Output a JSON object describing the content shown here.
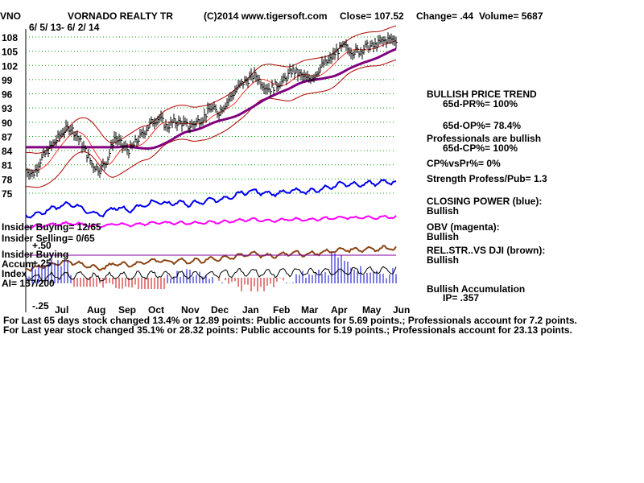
{
  "header": {
    "ticker": "VNO",
    "company": "VORNADO REALTY TR",
    "copyright": "(C)2014 www.tigersoft.com",
    "close": "Close=  107.52",
    "change": "Change= .44",
    "volume": "Volume= 5687",
    "date_range": "6/ 5/ 13- 6/ 2/ 14"
  },
  "right_panel": {
    "trend_title": "BULLISH PRICE TREND",
    "pr": "65d-PR%= 100%",
    "op": "65d-OP%= 78.4%",
    "pros": "Professionals are bullish",
    "cp": "65d-CP%= 100%",
    "cpvspr": "CP%vsPr%=  0%",
    "strength": "Strength Profess/Pub= 1.3",
    "closing_power": "CLOSING POWER (blue):",
    "closing_power_v": "Bullish",
    "obv": "OBV (magenta):",
    "obv_v": "Bullish",
    "relstr": "REL.STR..VS DJI (brown):",
    "relstr_v": "Bullish",
    "accum": "Bullish Accumulation",
    "ip": "IP=  .357"
  },
  "left_panel": {
    "insider_buying": "Insider Buying= 12/65",
    "insider_selling": "Insider Selling= 0/65",
    "insider_buying2": "Insider Buying",
    "accum": "Accum",
    "index": "Index",
    "ai": "AI= 157/200",
    "lvl_p50": "+.50",
    "lvl_p25": "+.25",
    "lvl_m25": "-.25"
  },
  "footer": {
    "line1": "For Last 65 days stock changed  13.4% or  12.89 points:  Public accounts for  5.69 points.;  Professionals account for  7.2 points.",
    "line2": "For Last year stock changed  35.1% or  28.32 points:  Public accounts for  5.19 points.;  Professionals account for  23.13 points."
  },
  "chart_data": {
    "type": "line",
    "x_months": [
      "Jul",
      "Aug",
      "Sep",
      "Oct",
      "Nov",
      "Dec",
      "Jan",
      "Feb",
      "Mar",
      "Apr",
      "May",
      "Jun"
    ],
    "y_ticks": [
      75,
      78,
      81,
      84,
      87,
      90,
      93,
      96,
      99,
      102,
      105,
      108
    ],
    "ylim": [
      74.5,
      109
    ],
    "grid": true,
    "colors": {
      "price": "#000000",
      "band": "#b00000",
      "ma": "#800080",
      "ma_short": "#ff3030",
      "closing_power": "#0000ee",
      "obv": "#ff00ff",
      "relstr": "#8b4513",
      "accum_pos": "#0000cc",
      "accum_neg": "#cc0000",
      "grid": "#00a000",
      "hline": "#8000a0"
    },
    "price_anchor": {
      "t": [
        0,
        0.02,
        0.04,
        0.06,
        0.08,
        0.1,
        0.12,
        0.14,
        0.16,
        0.18,
        0.2,
        0.22,
        0.24,
        0.26,
        0.28,
        0.3,
        0.32,
        0.34,
        0.36,
        0.38,
        0.4,
        0.42,
        0.44,
        0.46,
        0.48,
        0.5,
        0.52,
        0.54,
        0.56,
        0.58,
        0.6,
        0.62,
        0.64,
        0.66,
        0.68,
        0.7,
        0.72,
        0.74,
        0.76,
        0.78,
        0.8,
        0.82,
        0.84,
        0.86,
        0.88,
        0.9,
        0.92,
        0.94,
        0.96,
        0.98,
        1.0
      ],
      "v": [
        80,
        79,
        82,
        84,
        86,
        88,
        89,
        87,
        84,
        81,
        80,
        82,
        87,
        85,
        84,
        86,
        88,
        90,
        91,
        89,
        90,
        90,
        89,
        90,
        91,
        93,
        92,
        94,
        96,
        98,
        99,
        100,
        98,
        97,
        98,
        99,
        101,
        100,
        99,
        100,
        102,
        103,
        105,
        106,
        105,
        105,
        106,
        106,
        107,
        107.5,
        107.5
      ]
    }
  }
}
